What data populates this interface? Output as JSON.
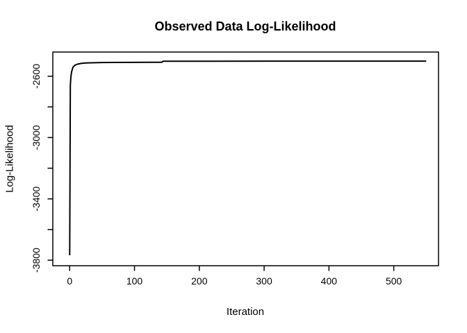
{
  "chart_data": {
    "type": "line",
    "title": "Observed Data Log-Likelihood",
    "xlabel": "Iteration",
    "ylabel": "Log-Likelihood",
    "xlim": [
      -26,
      569
    ],
    "ylim": [
      -3836,
      -2442
    ],
    "grid": false,
    "legend": null,
    "background": "#ffffff",
    "line_color": "#000000",
    "line_width": 2,
    "axis_color": "#000000",
    "x_ticks": [
      {
        "v": 0,
        "label": "0"
      },
      {
        "v": 100,
        "label": "100"
      },
      {
        "v": 200,
        "label": "200"
      },
      {
        "v": 300,
        "label": "300"
      },
      {
        "v": 400,
        "label": "400"
      },
      {
        "v": 500,
        "label": "500"
      }
    ],
    "y_ticks": [
      {
        "v": -2600,
        "label": "-2600"
      },
      {
        "v": -2800,
        "label": ""
      },
      {
        "v": -3000,
        "label": "-3000"
      },
      {
        "v": -3200,
        "label": ""
      },
      {
        "v": -3400,
        "label": "-3400"
      },
      {
        "v": -3600,
        "label": ""
      },
      {
        "v": -3800,
        "label": "-3800"
      }
    ],
    "series": [
      {
        "name": "observed-data-log-likelihood",
        "x": [
          0,
          1,
          2,
          3,
          5,
          8,
          12,
          18,
          25,
          35,
          50,
          70,
          100,
          130,
          142,
          144,
          170,
          220,
          300,
          400,
          500,
          550
        ],
        "y": [
          -3768,
          -2660,
          -2600,
          -2570,
          -2542,
          -2528,
          -2521,
          -2516,
          -2513,
          -2512,
          -2510.5,
          -2509.8,
          -2509.3,
          -2509,
          -2509,
          -2502,
          -2501.8,
          -2501.6,
          -2501.5,
          -2501.5,
          -2501.5,
          -2501.5
        ]
      }
    ]
  }
}
